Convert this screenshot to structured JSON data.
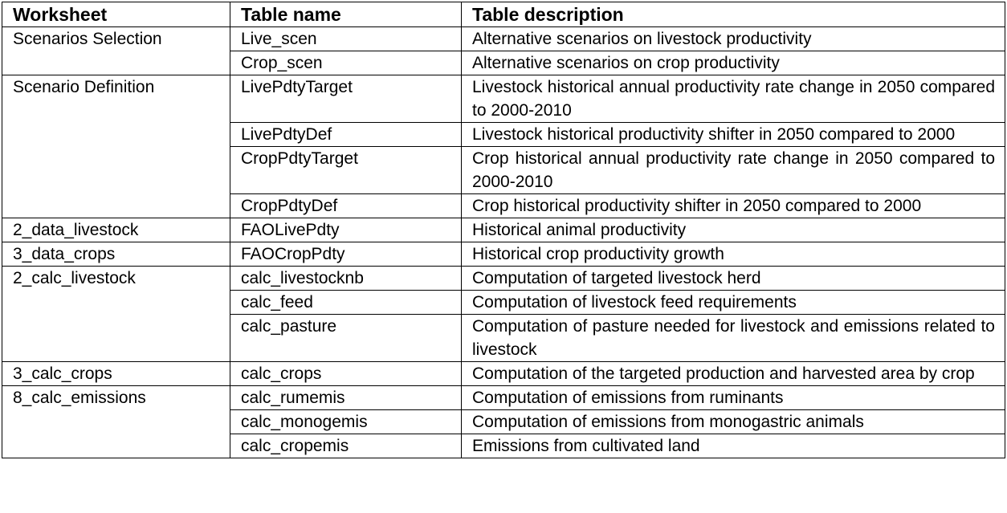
{
  "table": {
    "header": [
      "Worksheet",
      "Table name",
      "Table description"
    ],
    "groups": [
      {
        "worksheet": "Scenarios Selection",
        "tables": [
          {
            "name": "Live_scen",
            "description": "Alternative scenarios on livestock productivity"
          },
          {
            "name": "Crop_scen",
            "description": "Alternative scenarios on crop productivity"
          }
        ]
      },
      {
        "worksheet": "Scenario Definition",
        "tables": [
          {
            "name": "LivePdtyTarget",
            "description": "Livestock historical annual productivity rate change in 2050 compared to 2000-2010"
          },
          {
            "name": "LivePdtyDef",
            "description": "Livestock historical productivity shifter in 2050 compared to 2000"
          },
          {
            "name": "CropPdtyTarget",
            "description": "Crop historical annual productivity rate change in 2050 compared to 2000-2010"
          },
          {
            "name": "CropPdtyDef",
            "description": "Crop historical productivity shifter in 2050 compared to 2000"
          }
        ]
      },
      {
        "worksheet": "2_data_livestock",
        "tables": [
          {
            "name": "FAOLivePdty",
            "description": "Historical animal productivity"
          }
        ]
      },
      {
        "worksheet": "3_data_crops",
        "tables": [
          {
            "name": "FAOCropPdty",
            "description": "Historical crop productivity growth"
          }
        ]
      },
      {
        "worksheet": "2_calc_livestock",
        "tables": [
          {
            "name": "calc_livestocknb",
            "description": "Computation of targeted livestock herd"
          },
          {
            "name": "calc_feed",
            "description": "Computation of livestock feed requirements"
          },
          {
            "name": "calc_pasture",
            "description": "Computation of pasture needed for livestock and emissions related to livestock"
          }
        ]
      },
      {
        "worksheet": "3_calc_crops",
        "tables": [
          {
            "name": "calc_crops",
            "description": "Computation of the targeted production and harvested area by crop"
          }
        ]
      },
      {
        "worksheet": "8_calc_emissions",
        "tables": [
          {
            "name": "calc_rumemis",
            "description": "Computation of emissions from ruminants"
          },
          {
            "name": "calc_monogemis",
            "description": "Computation of emissions from monogastric animals"
          },
          {
            "name": "calc_cropemis",
            "description": "Emissions from cultivated land"
          }
        ]
      }
    ]
  }
}
